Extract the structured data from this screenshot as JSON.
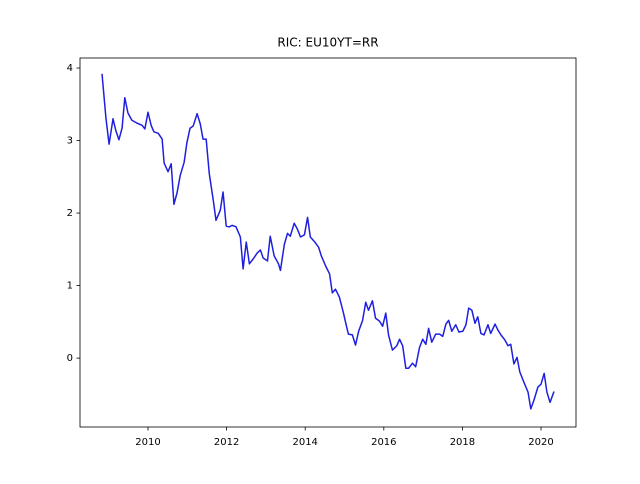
{
  "chart_data": {
    "type": "line",
    "title": "RIC: EU10YT=RR",
    "x": [
      2008.83,
      2008.93,
      2009.01,
      2009.11,
      2009.18,
      2009.26,
      2009.34,
      2009.41,
      2009.49,
      2009.59,
      2009.72,
      2009.85,
      2009.92,
      2010.0,
      2010.08,
      2010.15,
      2010.26,
      2010.36,
      2010.41,
      2010.51,
      2010.59,
      2010.66,
      2010.74,
      2010.82,
      2010.92,
      2010.99,
      2011.07,
      2011.15,
      2011.25,
      2011.33,
      2011.4,
      2011.48,
      2011.56,
      2011.66,
      2011.73,
      2011.84,
      2011.91,
      2011.99,
      2012.07,
      2012.14,
      2012.24,
      2012.35,
      2012.42,
      2012.5,
      2012.58,
      2012.68,
      2012.78,
      2012.86,
      2012.93,
      2013.04,
      2013.11,
      2013.21,
      2013.32,
      2013.37,
      2013.47,
      2013.55,
      2013.62,
      2013.72,
      2013.8,
      2013.88,
      2013.98,
      2014.06,
      2014.13,
      2014.23,
      2014.34,
      2014.41,
      2014.52,
      2014.62,
      2014.69,
      2014.77,
      2014.87,
      2014.97,
      2015.05,
      2015.1,
      2015.2,
      2015.28,
      2015.36,
      2015.46,
      2015.54,
      2015.61,
      2015.71,
      2015.79,
      2015.89,
      2015.97,
      2016.05,
      2016.12,
      2016.22,
      2016.33,
      2016.4,
      2016.48,
      2016.56,
      2016.63,
      2016.73,
      2016.81,
      2016.91,
      2016.99,
      2017.07,
      2017.14,
      2017.22,
      2017.32,
      2017.42,
      2017.5,
      2017.58,
      2017.65,
      2017.73,
      2017.83,
      2017.91,
      2018.01,
      2018.09,
      2018.16,
      2018.24,
      2018.32,
      2018.39,
      2018.47,
      2018.55,
      2018.65,
      2018.72,
      2018.83,
      2018.9,
      2018.98,
      2019.08,
      2019.16,
      2019.23,
      2019.31,
      2019.39,
      2019.46,
      2019.57,
      2019.67,
      2019.74,
      2019.82,
      2019.92,
      2020.0,
      2020.08,
      2020.15,
      2020.23,
      2020.33
    ],
    "series": [
      {
        "color": "#1f1fe0",
        "values": [
          3.92,
          3.31,
          2.95,
          3.3,
          3.14,
          3.01,
          3.17,
          3.59,
          3.38,
          3.28,
          3.24,
          3.21,
          3.16,
          3.39,
          3.21,
          3.12,
          3.1,
          3.02,
          2.69,
          2.57,
          2.68,
          2.12,
          2.28,
          2.52,
          2.7,
          2.97,
          3.17,
          3.2,
          3.37,
          3.23,
          3.02,
          3.02,
          2.54,
          2.18,
          1.9,
          2.04,
          2.29,
          1.82,
          1.81,
          1.83,
          1.81,
          1.67,
          1.23,
          1.6,
          1.3,
          1.37,
          1.45,
          1.49,
          1.38,
          1.34,
          1.68,
          1.41,
          1.3,
          1.21,
          1.57,
          1.72,
          1.68,
          1.86,
          1.78,
          1.67,
          1.7,
          1.94,
          1.67,
          1.61,
          1.53,
          1.41,
          1.27,
          1.16,
          0.9,
          0.95,
          0.84,
          0.63,
          0.44,
          0.33,
          0.32,
          0.18,
          0.37,
          0.52,
          0.77,
          0.66,
          0.79,
          0.55,
          0.51,
          0.44,
          0.62,
          0.32,
          0.11,
          0.17,
          0.26,
          0.17,
          -0.14,
          -0.14,
          -0.07,
          -0.12,
          0.15,
          0.26,
          0.19,
          0.41,
          0.22,
          0.33,
          0.33,
          0.3,
          0.47,
          0.52,
          0.37,
          0.46,
          0.36,
          0.37,
          0.46,
          0.69,
          0.66,
          0.48,
          0.57,
          0.34,
          0.32,
          0.46,
          0.34,
          0.47,
          0.39,
          0.32,
          0.25,
          0.17,
          0.19,
          -0.08,
          0.01,
          -0.19,
          -0.34,
          -0.47,
          -0.7,
          -0.58,
          -0.4,
          -0.36,
          -0.21,
          -0.47,
          -0.61,
          -0.46
        ]
      }
    ],
    "xlim": [
      2008.27,
      2020.89
    ],
    "xticks": [
      2010,
      2012,
      2014,
      2016,
      2018,
      2020
    ],
    "ylim": [
      -0.95,
      4.138
    ],
    "yticks": [
      0,
      1,
      2,
      3,
      4
    ]
  }
}
